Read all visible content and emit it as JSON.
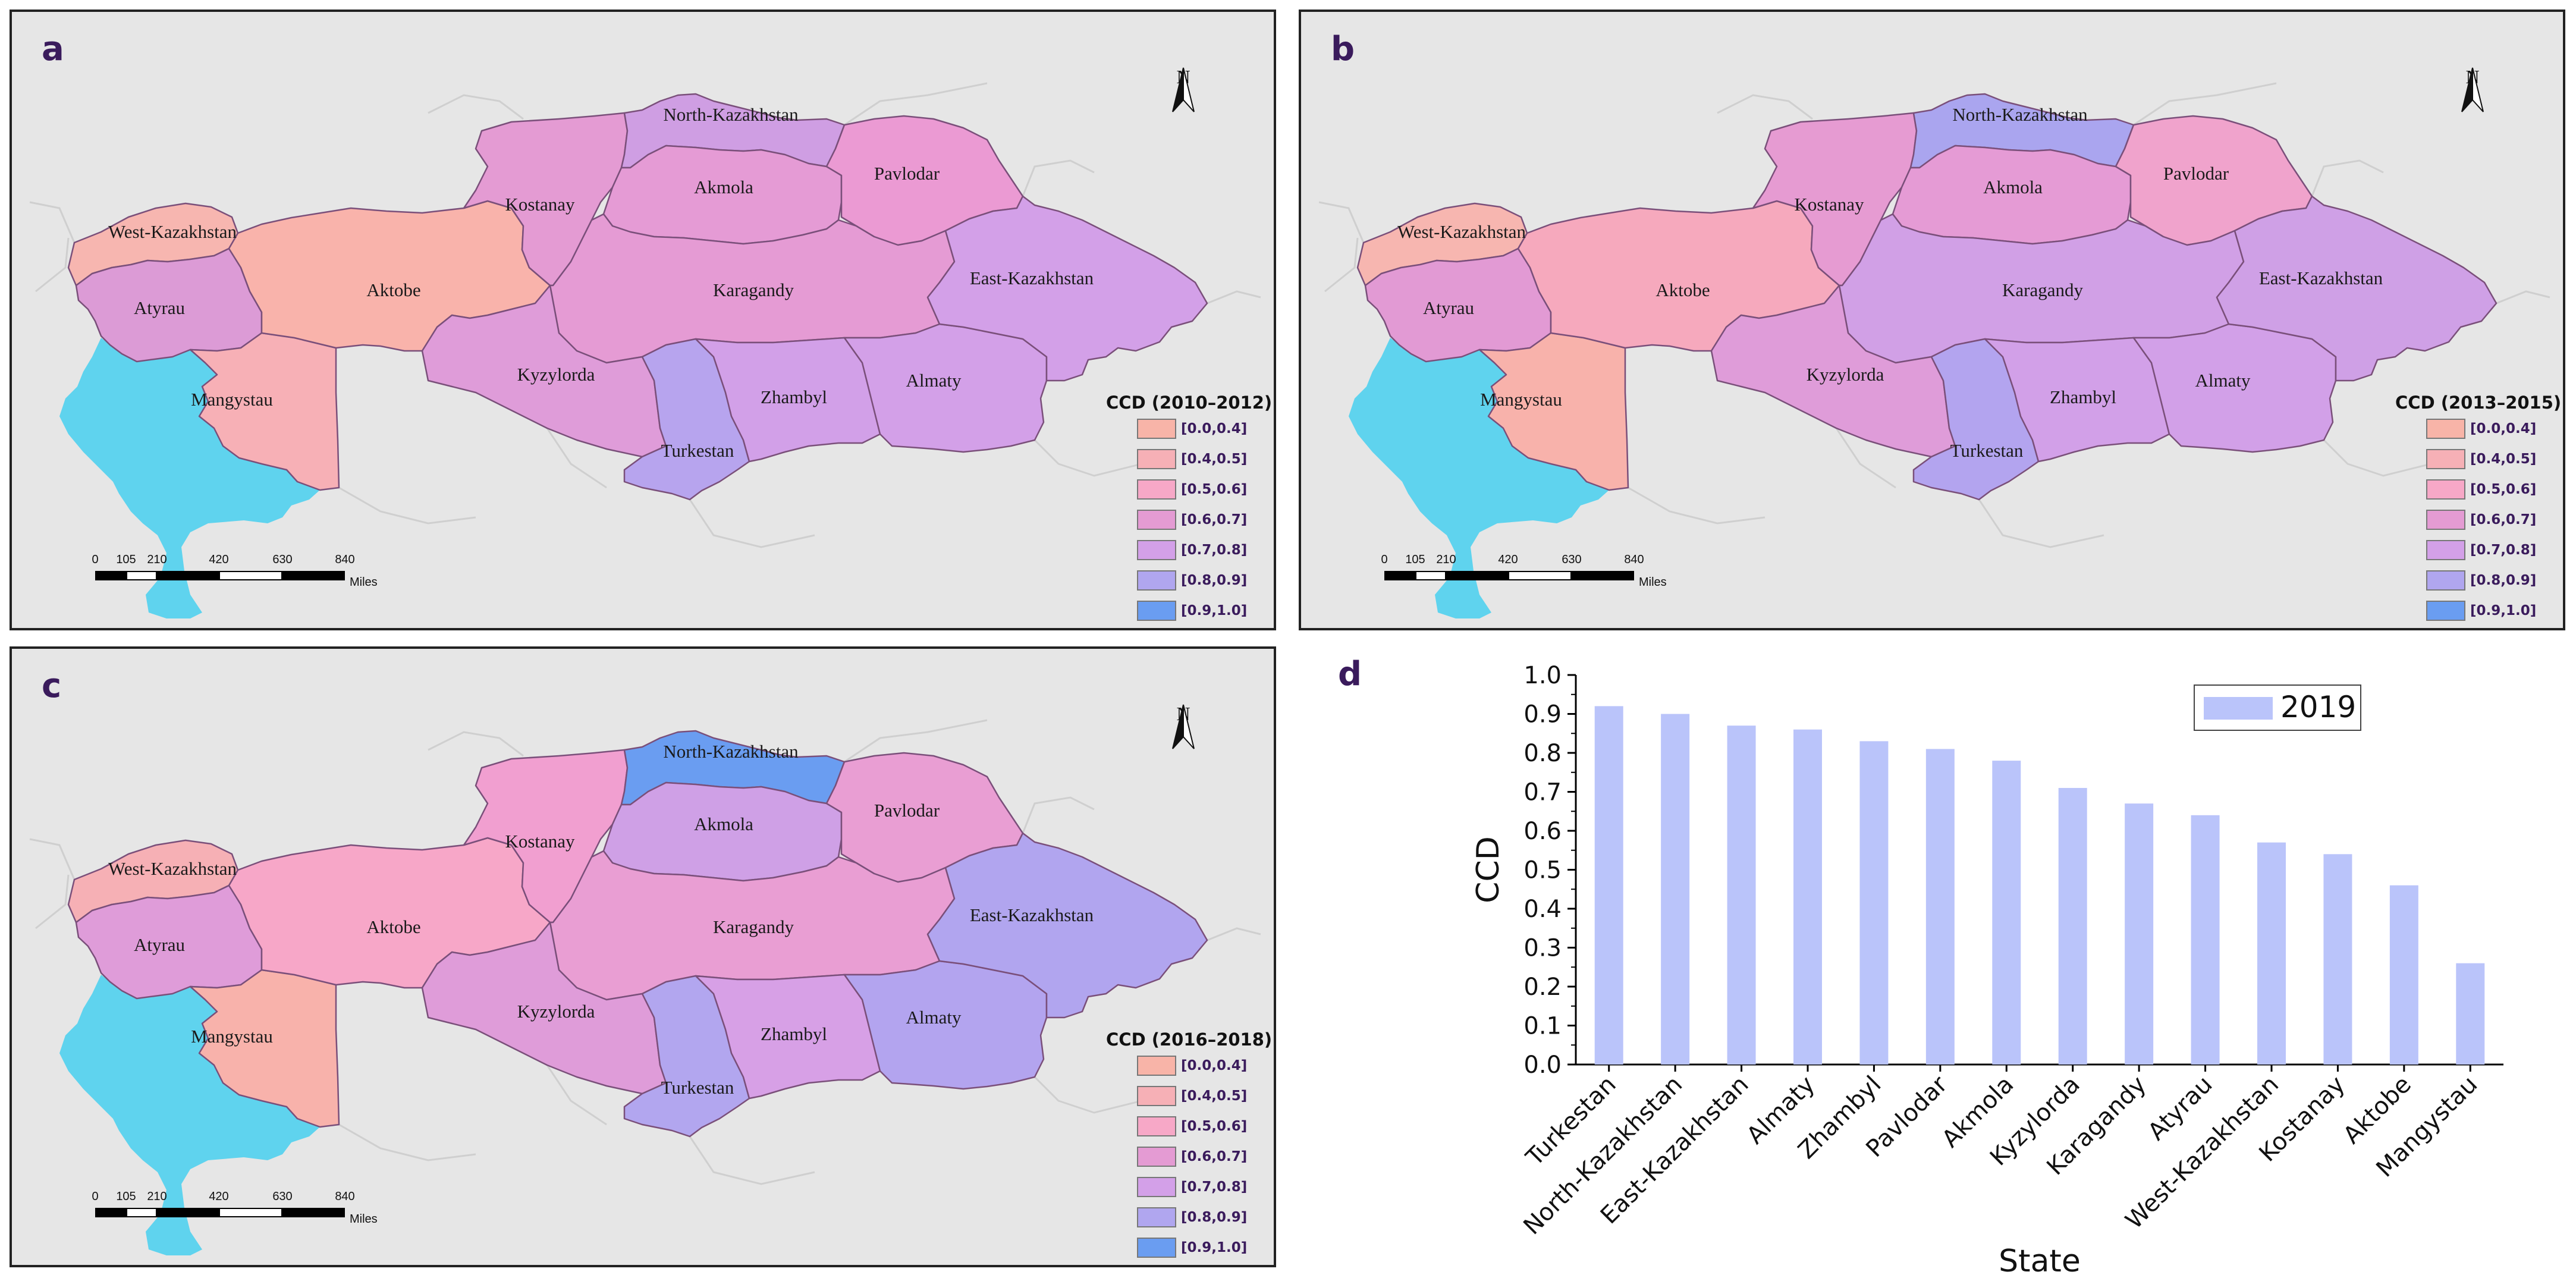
{
  "maps": [
    {
      "panel_label": "a",
      "legend_title": "CCD (2010–2012)",
      "colors": {
        "West-Kazakhstan": "#f7b6b0",
        "Atyrau": "#dc9bd6",
        "Mangystau": "#f7b0b6",
        "Aktobe": "#f9b3ab",
        "Kostanay": "#e49bd3",
        "North-Kazakhstan": "#cf9ee3",
        "Akmola": "#e59bd5",
        "Pavlodar": "#eb9ad3",
        "Karagandy": "#e59bd4",
        "Kyzylorda": "#df9cd9",
        "Turkestan": "#b7a4ee",
        "Zhambyl": "#d2a0e8",
        "Almaty": "#d3a0e8",
        "East-Kazakhstan": "#d3a0e8"
      }
    },
    {
      "panel_label": "b",
      "legend_title": "CCD (2013–2015)",
      "colors": {
        "West-Kazakhstan": "#f7b6b0",
        "Atyrau": "#e29ad4",
        "Mangystau": "#f8b2ab",
        "Aktobe": "#f6a9bd",
        "Kostanay": "#e69bd2",
        "North-Kazakhstan": "#aaa5ef",
        "Akmola": "#e59bd5",
        "Pavlodar": "#f0a3cc",
        "Karagandy": "#d1a0e6",
        "Kyzylorda": "#df9cd9",
        "Turkestan": "#b3a4ef",
        "Zhambyl": "#d2a0e8",
        "Almaty": "#d2a0e8",
        "East-Kazakhstan": "#cfa0e6"
      }
    },
    {
      "panel_label": "c",
      "legend_title": "CCD (2016–2018)",
      "colors": {
        "West-Kazakhstan": "#f6b0b5",
        "Atyrau": "#df9cd9",
        "Mangystau": "#f8b2ab",
        "Aktobe": "#f7a7c8",
        "Kostanay": "#f19fd0",
        "North-Kazakhstan": "#6a9df1",
        "Akmola": "#cfa0e6",
        "Pavlodar": "#e99ed3",
        "Karagandy": "#e99ed3",
        "Kyzylorda": "#df9cd9",
        "Turkestan": "#b2a6ef",
        "Zhambyl": "#d7a0e6",
        "Almaty": "#b3a4ef",
        "East-Kazakhstan": "#b1a5ef"
      }
    }
  ],
  "region_names": {
    "West-Kazakhstan": "West-Kazakhstan",
    "Atyrau": "Atyrau",
    "Mangystau": "Mangystau",
    "Aktobe": "Aktobe",
    "Kostanay": "Kostanay",
    "North-Kazakhstan": "North-Kazakhstan",
    "Akmola": "Akmola",
    "Pavlodar": "Pavlodar",
    "Karagandy": "Karagandy",
    "Kyzylorda": "Kyzylorda",
    "Turkestan": "Turkestan",
    "Zhambyl": "Zhambyl",
    "Almaty": "Almaty",
    "East-Kazakhstan": "East-Kazakhstan"
  },
  "legend_classes": [
    {
      "label": "[0.0,0.4]",
      "color": "#f8b4a8"
    },
    {
      "label": "[0.4,0.5]",
      "color": "#f6b0b6"
    },
    {
      "label": "[0.5,0.6]",
      "color": "#f7a8c7"
    },
    {
      "label": "[0.6,0.7]",
      "color": "#e49bd3"
    },
    {
      "label": "[0.7,0.8]",
      "color": "#d3a0e8"
    },
    {
      "label": "[0.8,0.9]",
      "color": "#b0a6ef"
    },
    {
      "label": "[0.9,1.0]",
      "color": "#6a9df1"
    }
  ],
  "north_label": "N",
  "scale_ticks": [
    "0",
    "105",
    "210",
    "420",
    "630",
    "840"
  ],
  "scale_units": "Miles",
  "sea_color": "#5fd3ee",
  "land_color": "#e6e6e6",
  "chart_data": {
    "panel_label": "d",
    "type": "bar",
    "categories": [
      "Turkestan",
      "North-Kazakhstan",
      "East-Kazakhstan",
      "Almaty",
      "Zhambyl",
      "Pavlodar",
      "Akmola",
      "Kyzylorda",
      "Karagandy",
      "Atyrau",
      "West-Kazakhstan",
      "Kostanay",
      "Aktobe",
      "Mangystau"
    ],
    "series": [
      {
        "name": "2019",
        "values": [
          0.92,
          0.9,
          0.87,
          0.86,
          0.83,
          0.81,
          0.78,
          0.71,
          0.67,
          0.64,
          0.57,
          0.54,
          0.46,
          0.26
        ],
        "color": "#bac4fa"
      }
    ],
    "xlabel": "State",
    "ylabel": "CCD",
    "ylim": [
      0.0,
      1.0
    ],
    "yticks": [
      "0.0",
      "0.1",
      "0.2",
      "0.3",
      "0.4",
      "0.5",
      "0.6",
      "0.7",
      "0.8",
      "0.9",
      "1.0"
    ],
    "legend_position": "top-right",
    "grid": false
  }
}
